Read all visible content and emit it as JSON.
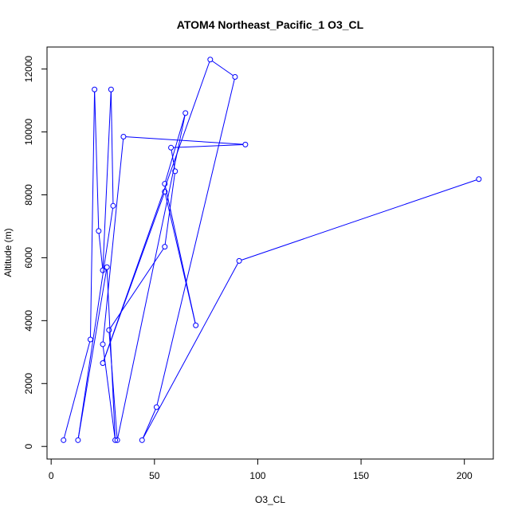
{
  "chart_data": {
    "type": "line",
    "title": "ATOM4 Northeast_Pacific_1 O3_CL",
    "xlabel": "O3_CL",
    "ylabel": "Altitude (m)",
    "xlim": [
      -2,
      214
    ],
    "ylim": [
      -400,
      12700
    ],
    "x_ticks": [
      0,
      50,
      100,
      150,
      200
    ],
    "y_ticks": [
      0,
      2000,
      4000,
      6000,
      8000,
      10000,
      12000
    ],
    "line_color": "#0000ff",
    "marker": "open-circle",
    "grid": false,
    "legend": "none",
    "series": [
      {
        "points": [
          {
            "x": 6,
            "y": 200
          },
          {
            "x": 19,
            "y": 3400
          },
          {
            "x": 21,
            "y": 11350
          },
          {
            "x": 23,
            "y": 6850
          },
          {
            "x": 25,
            "y": 5600
          },
          {
            "x": 29,
            "y": 11350
          },
          {
            "x": 30,
            "y": 7650
          },
          {
            "x": 13,
            "y": 200
          },
          {
            "x": 27,
            "y": 5700
          },
          {
            "x": 31,
            "y": 200
          },
          {
            "x": 25,
            "y": 3250
          },
          {
            "x": 35,
            "y": 9850
          },
          {
            "x": 94,
            "y": 9600
          },
          {
            "x": 58,
            "y": 9500
          },
          {
            "x": 60,
            "y": 8750
          },
          {
            "x": 55,
            "y": 6350
          },
          {
            "x": 28,
            "y": 3700
          },
          {
            "x": 32,
            "y": 200
          },
          {
            "x": 65,
            "y": 10600
          },
          {
            "x": 55,
            "y": 8350
          },
          {
            "x": 70,
            "y": 3850
          },
          {
            "x": 55,
            "y": 8100
          },
          {
            "x": 25,
            "y": 2650
          },
          {
            "x": 77,
            "y": 12300
          },
          {
            "x": 89,
            "y": 11750
          },
          {
            "x": 51,
            "y": 1250
          },
          {
            "x": 44,
            "y": 200
          },
          {
            "x": 91,
            "y": 5900
          },
          {
            "x": 207,
            "y": 8500
          }
        ]
      }
    ]
  }
}
